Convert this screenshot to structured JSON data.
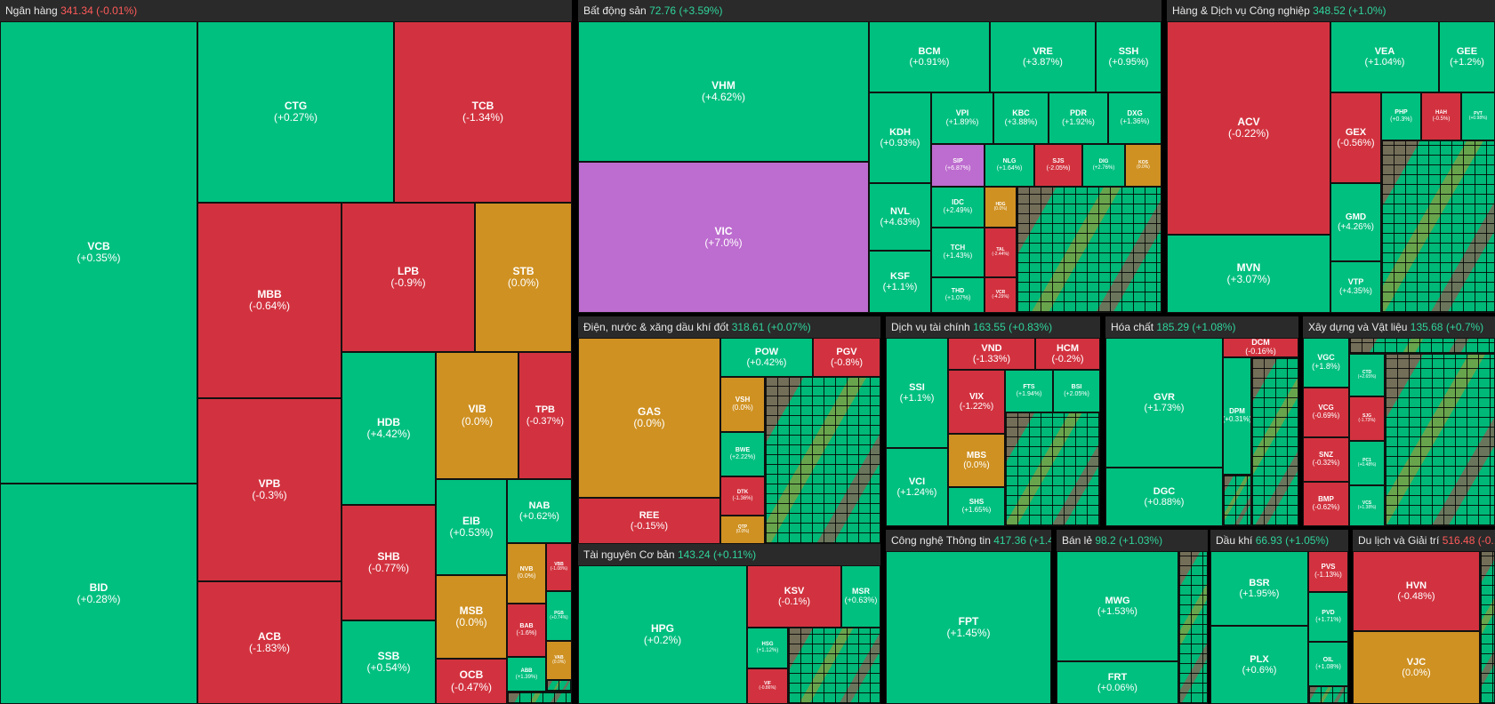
{
  "colors": {
    "up": "#00c07f",
    "down": "#d2323f",
    "ref": "#cf9122",
    "ceiling": "#bd6ccf",
    "floor": "#5b7fd6",
    "header_bg": "#2a2a2a"
  },
  "sectors": {
    "bank": {
      "name": "Ngân hàng",
      "index": "341.34 (-0.01%)",
      "tiles": [
        {
          "t": "VCB",
          "c": "(+0.35%)"
        },
        {
          "t": "BID",
          "c": "(+0.28%)"
        },
        {
          "t": "CTG",
          "c": "(+0.27%)"
        },
        {
          "t": "TCB",
          "c": "(-1.34%)"
        },
        {
          "t": "MBB",
          "c": "(-0.64%)"
        },
        {
          "t": "LPB",
          "c": "(-0.9%)"
        },
        {
          "t": "STB",
          "c": "(0.0%)"
        },
        {
          "t": "VPB",
          "c": "(-0.3%)"
        },
        {
          "t": "HDB",
          "c": "(+4.42%)"
        },
        {
          "t": "VIB",
          "c": "(0.0%)"
        },
        {
          "t": "TPB",
          "c": "(-0.37%)"
        },
        {
          "t": "ACB",
          "c": "(-1.83%)"
        },
        {
          "t": "SHB",
          "c": "(-0.77%)"
        },
        {
          "t": "EIB",
          "c": "(+0.53%)"
        },
        {
          "t": "NAB",
          "c": "(+0.62%)"
        },
        {
          "t": "SSB",
          "c": "(+0.54%)"
        },
        {
          "t": "MSB",
          "c": "(0.0%)"
        },
        {
          "t": "OCB",
          "c": "(-0.47%)"
        },
        {
          "t": "NVB",
          "c": "(0.0%)"
        },
        {
          "t": "VBB",
          "c": "(-1.08%)"
        },
        {
          "t": "BAB",
          "c": "(-1.6%)"
        },
        {
          "t": "PGB",
          "c": "(+0.74%)"
        },
        {
          "t": "VAB",
          "c": "(0.0%)"
        },
        {
          "t": "ABB",
          "c": "(+1.39%)"
        }
      ]
    },
    "realestate": {
      "name": "Bất động sản",
      "index": "72.76 (+3.59%)",
      "tiles": [
        {
          "t": "VHM",
          "c": "(+4.62%)"
        },
        {
          "t": "VIC",
          "c": "(+7.0%)"
        },
        {
          "t": "BCM",
          "c": "(+0.91%)"
        },
        {
          "t": "VRE",
          "c": "(+3.87%)"
        },
        {
          "t": "SSH",
          "c": "(+0.95%)"
        },
        {
          "t": "KDH",
          "c": "(+0.93%)"
        },
        {
          "t": "VPI",
          "c": "(+1.89%)"
        },
        {
          "t": "KBC",
          "c": "(+3.88%)"
        },
        {
          "t": "PDR",
          "c": "(+1.92%)"
        },
        {
          "t": "DXG",
          "c": "(+1.36%)"
        },
        {
          "t": "SIP",
          "c": "(+6.87%)"
        },
        {
          "t": "NLG",
          "c": "(+1.64%)"
        },
        {
          "t": "SJS",
          "c": "(-2.05%)"
        },
        {
          "t": "DIG",
          "c": "(+2.76%)"
        },
        {
          "t": "KOS",
          "c": "(0.0%)"
        },
        {
          "t": "NVL",
          "c": "(+4.63%)"
        },
        {
          "t": "IDC",
          "c": "(+2.49%)"
        },
        {
          "t": "HDG",
          "c": "(0.0%)"
        },
        {
          "t": "TCH",
          "c": "(+1.43%)"
        },
        {
          "t": "TAL",
          "c": "(-2.44%)"
        },
        {
          "t": "KSF",
          "c": "(+1.1%)"
        },
        {
          "t": "THD",
          "c": "(+1.07%)"
        },
        {
          "t": "VCR",
          "c": "(-4.29%)"
        }
      ]
    },
    "industrial": {
      "name": "Hàng & Dịch vụ Công nghiệp",
      "index": "348.52 (+1.0%)",
      "tiles": [
        {
          "t": "ACV",
          "c": "(-0.22%)"
        },
        {
          "t": "MVN",
          "c": "(+3.07%)"
        },
        {
          "t": "VEA",
          "c": "(+1.04%)"
        },
        {
          "t": "GEE",
          "c": "(+1.2%)"
        },
        {
          "t": "GEX",
          "c": "(-0.56%)"
        },
        {
          "t": "PHP",
          "c": "(+0.3%)"
        },
        {
          "t": "HAH",
          "c": "(-0.5%)"
        },
        {
          "t": "PVT",
          "c": "(+0.98%)"
        },
        {
          "t": "GMD",
          "c": "(+4.26%)"
        },
        {
          "t": "VTP",
          "c": "(+4.35%)"
        }
      ]
    },
    "utilities": {
      "name": "Điện, nước & xăng dầu khí đốt",
      "index": "318.61 (+0.07%)",
      "tiles": [
        {
          "t": "GAS",
          "c": "(0.0%)"
        },
        {
          "t": "POW",
          "c": "(+0.42%)"
        },
        {
          "t": "PGV",
          "c": "(-0.8%)"
        },
        {
          "t": "VSH",
          "c": "(0.0%)"
        },
        {
          "t": "BWE",
          "c": "(+2.22%)"
        },
        {
          "t": "REE",
          "c": "(-0.15%)"
        },
        {
          "t": "DTK",
          "c": "(-1.36%)"
        },
        {
          "t": "QTP",
          "c": "(0.0%)"
        }
      ]
    },
    "finance": {
      "name": "Dịch vụ tài chính",
      "index": "163.55 (+0.83%)",
      "tiles": [
        {
          "t": "SSI",
          "c": "(+1.1%)"
        },
        {
          "t": "VND",
          "c": "(-1.33%)"
        },
        {
          "t": "HCM",
          "c": "(-0.2%)"
        },
        {
          "t": "VIX",
          "c": "(-1.22%)"
        },
        {
          "t": "FTS",
          "c": "(+1.94%)"
        },
        {
          "t": "BSI",
          "c": "(+2.05%)"
        },
        {
          "t": "VCI",
          "c": "(+1.24%)"
        },
        {
          "t": "MBS",
          "c": "(0.0%)"
        },
        {
          "t": "SHS",
          "c": "(+1.65%)"
        }
      ]
    },
    "chemicals": {
      "name": "Hóa chất",
      "index": "185.29 (+1.08%)",
      "tiles": [
        {
          "t": "DCM",
          "c": "(-0.16%)"
        },
        {
          "t": "GVR",
          "c": "(+1.73%)"
        },
        {
          "t": "DPM",
          "c": "(+0.31%)"
        },
        {
          "t": "DGC",
          "c": "(+0.88%)"
        }
      ]
    },
    "construction": {
      "name": "Xây dựng và Vật liệu",
      "index": "135.68 (+0.7%)",
      "tiles": [
        {
          "t": "VGC",
          "c": "(+1.8%)"
        },
        {
          "t": "VCG",
          "c": "(-0.69%)"
        },
        {
          "t": "SNZ",
          "c": "(-0.32%)"
        },
        {
          "t": "BMP",
          "c": "(-0.62%)"
        },
        {
          "t": "CTD",
          "c": "(+2.65%)"
        },
        {
          "t": "SJG",
          "c": "(-1.73%)"
        },
        {
          "t": "PC1",
          "c": "(+0.48%)"
        },
        {
          "t": "VCS",
          "c": "(+1.38%)"
        }
      ]
    },
    "resources": {
      "name": "Tài nguyên Cơ bản",
      "index": "143.24 (+0.11%)",
      "tiles": [
        {
          "t": "HPG",
          "c": "(+0.2%)"
        },
        {
          "t": "KSV",
          "c": "(-0.1%)"
        },
        {
          "t": "MSR",
          "c": "(+0.63%)"
        },
        {
          "t": "HSG",
          "c": "(+1.12%)"
        },
        {
          "t": "VIF",
          "c": "(-0.86%)"
        }
      ]
    },
    "tech": {
      "name": "Công nghệ Thông tin",
      "index": "417.36 (+1.4...",
      "tiles": [
        {
          "t": "FPT",
          "c": "(+1.45%)"
        }
      ]
    },
    "retail": {
      "name": "Bán lẻ",
      "index": "98.2 (+1.03%)",
      "tiles": [
        {
          "t": "MWG",
          "c": "(+1.53%)"
        },
        {
          "t": "FRT",
          "c": "(+0.06%)"
        }
      ]
    },
    "oilgas": {
      "name": "Dầu khí",
      "index": "66.93 (+1.05%)",
      "tiles": [
        {
          "t": "BSR",
          "c": "(+1.95%)"
        },
        {
          "t": "PLX",
          "c": "(+0.6%)"
        },
        {
          "t": "PVS",
          "c": "(-1.13%)"
        },
        {
          "t": "PVD",
          "c": "(+1.71%)"
        },
        {
          "t": "OIL",
          "c": "(+1.08%)"
        }
      ]
    },
    "travel": {
      "name": "Du lịch và Giải trí",
      "index": "516.48 (-0...",
      "tiles": [
        {
          "t": "HVN",
          "c": "(-0.48%)"
        },
        {
          "t": "VJC",
          "c": "(0.0%)"
        }
      ]
    }
  }
}
